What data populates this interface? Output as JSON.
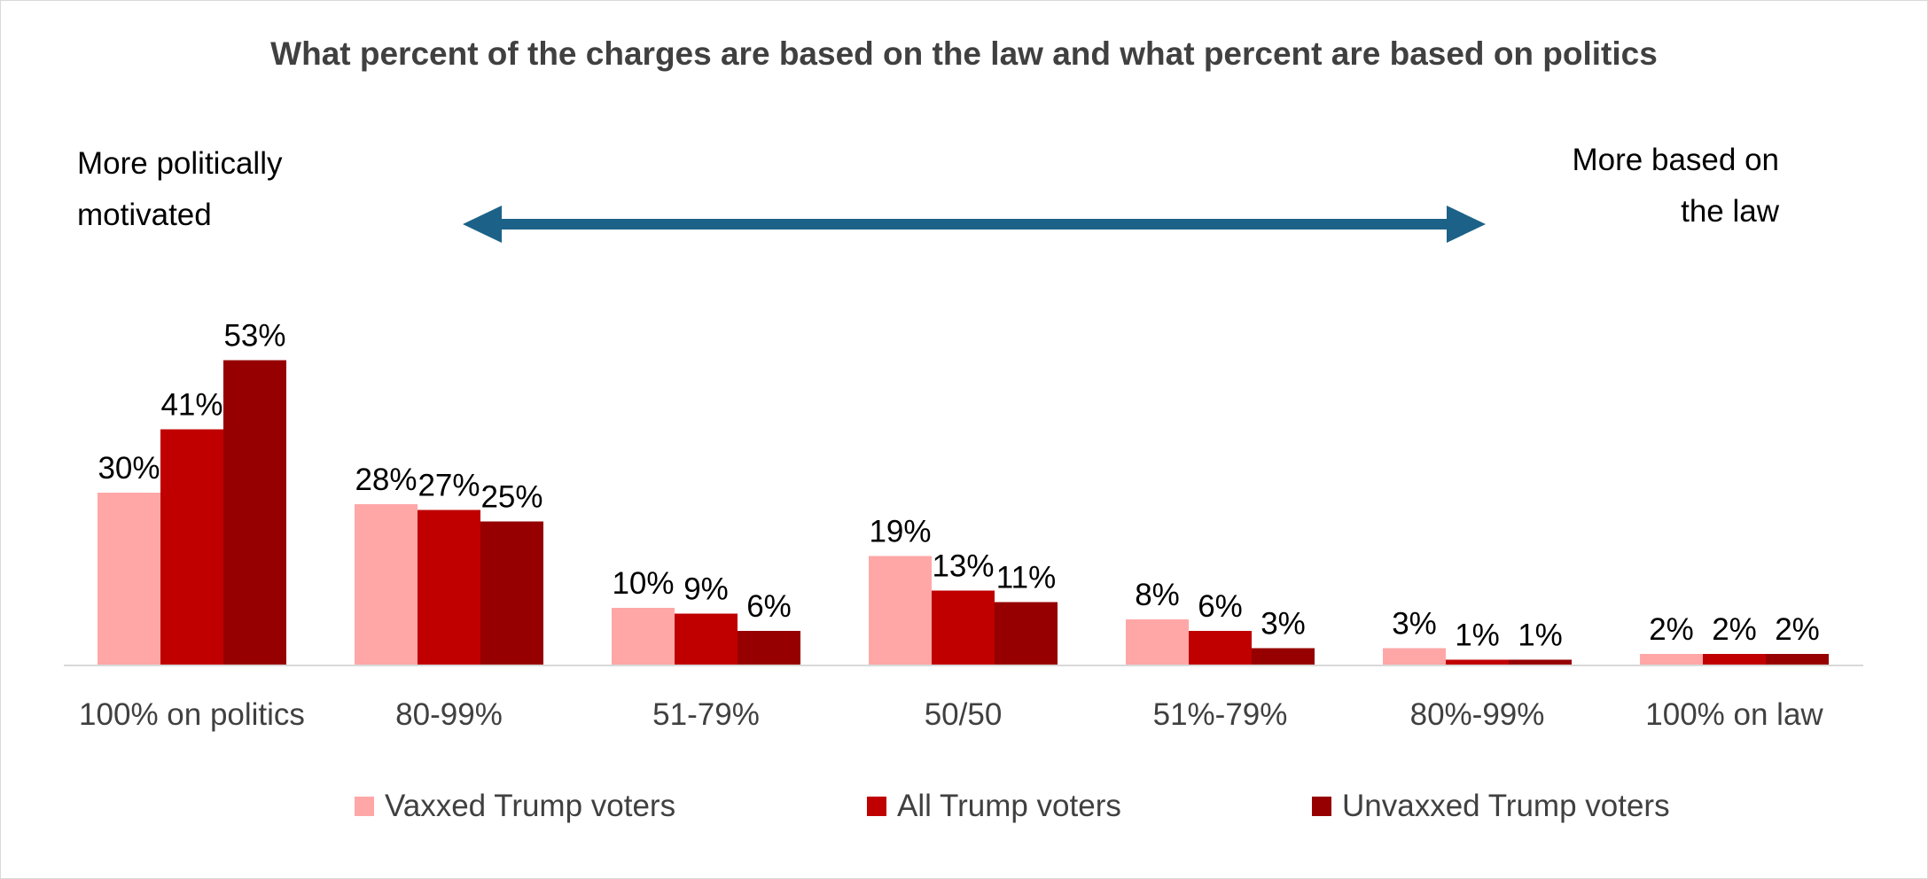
{
  "chart_data": {
    "type": "bar",
    "title": "What percent of the charges are based on the law and what percent are based on politics",
    "annotations": {
      "left": "More politically\nmotivated",
      "right": "More based on\nthe law"
    },
    "categories": [
      "100% on politics",
      "80-99%",
      "51-79%",
      "50/50",
      "51%-79%",
      "80%-99%",
      "100% on law"
    ],
    "series": [
      {
        "name": "Vaxxed Trump voters",
        "color": "#ffa7a7",
        "values": [
          30,
          28,
          10,
          19,
          8,
          3,
          2
        ],
        "labels": [
          "30%",
          "28%",
          "10%",
          "19%",
          "8%",
          "3%",
          "2%"
        ]
      },
      {
        "name": "All Trump voters",
        "color": "#c00000",
        "values": [
          41,
          27,
          9,
          13,
          6,
          1,
          2
        ],
        "labels": [
          "41%",
          "27%",
          "9%",
          "13%",
          "6%",
          "1%",
          "2%"
        ]
      },
      {
        "name": "Unvaxxed Trump voters",
        "color": "#960000",
        "values": [
          53,
          25,
          6,
          11,
          3,
          1,
          2
        ],
        "labels": [
          "53%",
          "25%",
          "6%",
          "11%",
          "3%",
          "1%",
          "2%"
        ]
      }
    ],
    "arrow_color": "#1c6288",
    "ylim": [
      0,
      60
    ],
    "grid": false,
    "legend_position": "bottom"
  }
}
